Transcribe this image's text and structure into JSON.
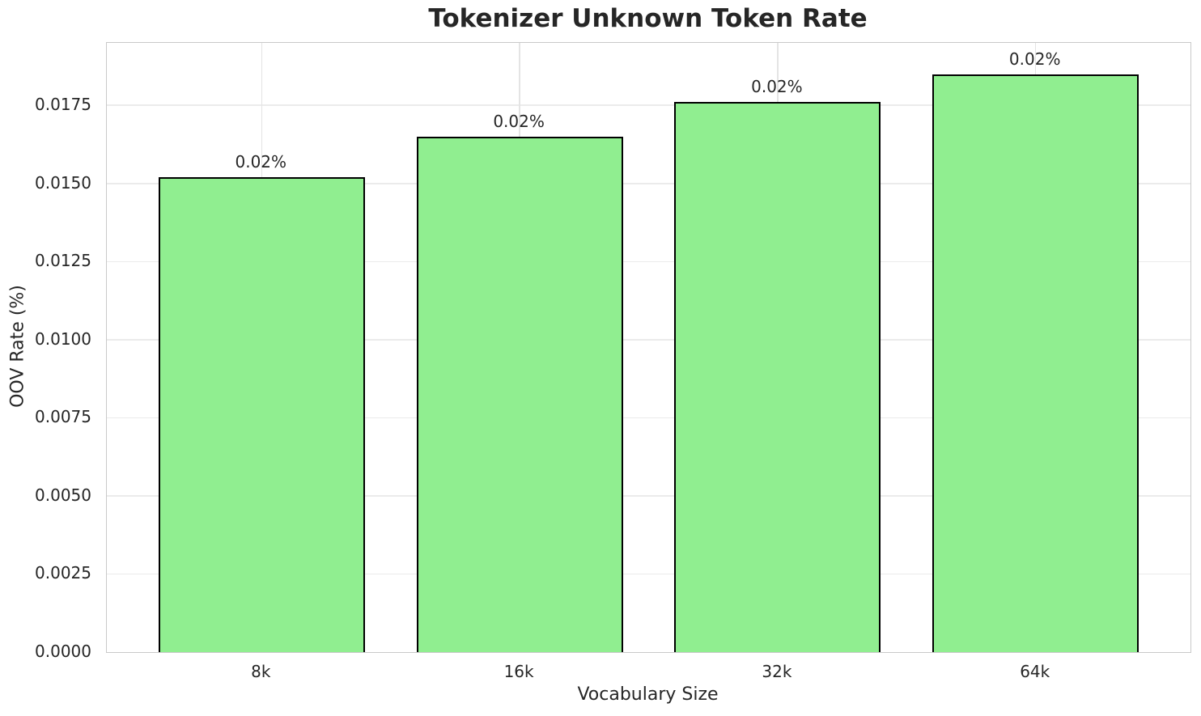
{
  "chart_data": {
    "type": "bar",
    "title": "Tokenizer Unknown Token Rate",
    "xlabel": "Vocabulary Size",
    "ylabel": "OOV Rate (%)",
    "categories": [
      "8k",
      "16k",
      "32k",
      "64k"
    ],
    "values": [
      0.0152,
      0.0165,
      0.0176,
      0.0185
    ],
    "bar_labels": [
      "0.02%",
      "0.02%",
      "0.02%",
      "0.02%"
    ],
    "yticks": [
      0.0,
      0.0025,
      0.005,
      0.0075,
      0.01,
      0.0125,
      0.015,
      0.0175
    ],
    "ytick_labels": [
      "0.0000",
      "0.0025",
      "0.0050",
      "0.0075",
      "0.0100",
      "0.0125",
      "0.0150",
      "0.0175"
    ],
    "ylim": [
      0,
      0.0195
    ],
    "grid": true,
    "legend_position": "none",
    "colors": {
      "bar_fill": "#90EE90",
      "bar_edge": "#000000",
      "grid_line": "#ebebeb",
      "axes_edge": "#c9c9c9",
      "text": "#262626"
    }
  }
}
